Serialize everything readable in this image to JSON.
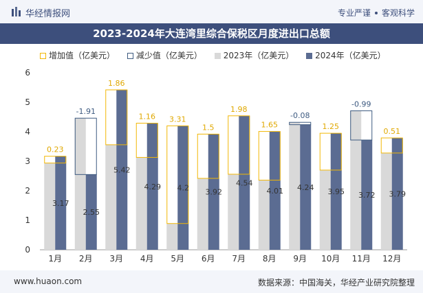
{
  "header": {
    "brand": "华经情报网",
    "tagline_left": "专业严谨",
    "tagline_right": "客观科学"
  },
  "title": "2023-2024年大连湾里综合保税区月度进出口总额",
  "legend": {
    "increase": "增加值（亿美元）",
    "decrease": "减少值（亿美元）",
    "y2023": "2023年（亿美元）",
    "y2024": "2024年（亿美元）"
  },
  "colors": {
    "bar_2023": "#d9d9d9",
    "bar_2024": "#5b6c92",
    "increase": "#f2b705",
    "decrease": "#3d5a80",
    "header_bg": "#3d4f7c"
  },
  "chart_data": {
    "type": "bar",
    "categories": [
      "1月",
      "2月",
      "3月",
      "4月",
      "5月",
      "6月",
      "7月",
      "8月",
      "9月",
      "10月",
      "11月",
      "12月"
    ],
    "series": [
      {
        "name": "2023年（亿美元）",
        "values": [
          2.94,
          4.46,
          3.56,
          3.13,
          0.89,
          2.42,
          2.56,
          2.36,
          4.32,
          2.7,
          4.71,
          3.28
        ]
      },
      {
        "name": "2024年（亿美元）",
        "values": [
          3.17,
          2.55,
          5.42,
          4.29,
          4.2,
          3.92,
          4.54,
          4.01,
          4.24,
          3.95,
          3.72,
          3.79
        ]
      }
    ],
    "change_labels": [
      "0.23",
      "-1.91",
      "1.86",
      "1.16",
      "3.31",
      "1.5",
      "1.98",
      "1.65",
      "-0.08",
      "1.25",
      "-0.99",
      "0.51"
    ],
    "value_labels_2024": [
      "3.17",
      "2.55",
      "5.42",
      "4.29",
      "4.2",
      "3.92",
      "4.54",
      "4.01",
      "4.24",
      "3.95",
      "3.72",
      "3.79"
    ],
    "y_ticks": [
      "0",
      "1",
      "2",
      "3",
      "4",
      "5",
      "6"
    ],
    "ylim": [
      0,
      6
    ],
    "grid": false,
    "legend_position": "top"
  },
  "footer": {
    "site": "www.huaon.com",
    "source": "数据来源：中国海关，华经产业研究院整理"
  }
}
